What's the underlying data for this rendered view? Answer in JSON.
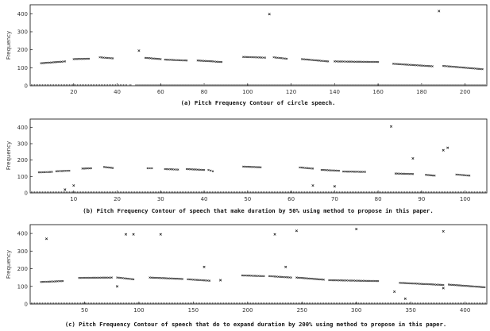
{
  "chart_data": [
    {
      "type": "scatter",
      "ylabel": "Frequency",
      "caption": "(a) Pitch Frequency Contour of circle speech.",
      "xlim": [
        0,
        210
      ],
      "ylim": [
        0,
        450
      ],
      "xticks": [
        20,
        40,
        60,
        80,
        100,
        120,
        140,
        160,
        180,
        200
      ],
      "yticks": [
        0,
        100,
        200,
        300,
        400
      ],
      "segments": [
        {
          "x": [
            5,
            16
          ],
          "y": [
            125,
            135
          ]
        },
        {
          "x": [
            20,
            27
          ],
          "y": [
            148,
            150
          ]
        },
        {
          "x": [
            32,
            38
          ],
          "y": [
            158,
            152
          ]
        },
        {
          "x": [
            53,
            60
          ],
          "y": [
            155,
            148
          ]
        },
        {
          "x": [
            62,
            72
          ],
          "y": [
            145,
            140
          ]
        },
        {
          "x": [
            77,
            88
          ],
          "y": [
            140,
            132
          ]
        },
        {
          "x": [
            98,
            108
          ],
          "y": [
            160,
            156
          ]
        },
        {
          "x": [
            112,
            118
          ],
          "y": [
            158,
            150
          ]
        },
        {
          "x": [
            125,
            137
          ],
          "y": [
            148,
            135
          ]
        },
        {
          "x": [
            140,
            160
          ],
          "y": [
            135,
            132
          ]
        },
        {
          "x": [
            167,
            185
          ],
          "y": [
            122,
            108
          ]
        },
        {
          "x": [
            190,
            208
          ],
          "y": [
            110,
            92
          ]
        }
      ],
      "outliers": [
        {
          "x": 110,
          "y": 398
        },
        {
          "x": 188,
          "y": 415
        },
        {
          "x": 50,
          "y": 195
        }
      ],
      "zero_runs": [
        [
          0,
          45
        ],
        [
          45,
          47
        ],
        [
          48,
          210
        ]
      ]
    },
    {
      "type": "scatter",
      "ylabel": "Frequency",
      "caption": "(b) Pitch Frequency Contour of speech that make duration by 50% using method to propose in this paper.",
      "xlim": [
        0,
        105
      ],
      "ylim": [
        0,
        450
      ],
      "xticks": [
        10,
        20,
        30,
        40,
        50,
        60,
        70,
        80,
        90,
        100
      ],
      "yticks": [
        0,
        100,
        200,
        300,
        400
      ],
      "segments": [
        {
          "x": [
            2,
            5
          ],
          "y": [
            125,
            128
          ]
        },
        {
          "x": [
            6,
            9
          ],
          "y": [
            132,
            135
          ]
        },
        {
          "x": [
            12,
            14
          ],
          "y": [
            148,
            150
          ]
        },
        {
          "x": [
            17,
            19
          ],
          "y": [
            158,
            152
          ]
        },
        {
          "x": [
            27,
            28
          ],
          "y": [
            150,
            150
          ]
        },
        {
          "x": [
            31,
            34
          ],
          "y": [
            145,
            142
          ]
        },
        {
          "x": [
            36,
            40
          ],
          "y": [
            145,
            140
          ]
        },
        {
          "x": [
            41,
            42
          ],
          "y": [
            140,
            132
          ]
        },
        {
          "x": [
            49,
            53
          ],
          "y": [
            160,
            156
          ]
        },
        {
          "x": [
            62,
            65
          ],
          "y": [
            155,
            148
          ]
        },
        {
          "x": [
            67,
            71
          ],
          "y": [
            140,
            135
          ]
        },
        {
          "x": [
            72,
            77
          ],
          "y": [
            130,
            128
          ]
        },
        {
          "x": [
            84,
            88
          ],
          "y": [
            118,
            115
          ]
        },
        {
          "x": [
            91,
            93
          ],
          "y": [
            110,
            105
          ]
        },
        {
          "x": [
            98,
            101
          ],
          "y": [
            112,
            105
          ]
        }
      ],
      "outliers": [
        {
          "x": 10,
          "y": 45
        },
        {
          "x": 8,
          "y": 20
        },
        {
          "x": 65,
          "y": 45
        },
        {
          "x": 70,
          "y": 40
        },
        {
          "x": 83,
          "y": 405
        },
        {
          "x": 88,
          "y": 210
        },
        {
          "x": 95,
          "y": 260
        },
        {
          "x": 96,
          "y": 275
        }
      ],
      "zero_runs": [
        [
          0,
          105
        ]
      ]
    },
    {
      "type": "scatter",
      "ylabel": "Frequency",
      "caption": "(c) Pitch Frequency Contour of speech that do to expand duration by 200% using method to propose in this paper.",
      "xlim": [
        0,
        420
      ],
      "ylim": [
        0,
        450
      ],
      "xticks": [
        50,
        100,
        150,
        200,
        250,
        300,
        350,
        400
      ],
      "yticks": [
        0,
        100,
        200,
        300,
        400
      ],
      "segments": [
        {
          "x": [
            10,
            30
          ],
          "y": [
            125,
            130
          ]
        },
        {
          "x": [
            45,
            75
          ],
          "y": [
            148,
            150
          ]
        },
        {
          "x": [
            80,
            95
          ],
          "y": [
            150,
            140
          ]
        },
        {
          "x": [
            110,
            140
          ],
          "y": [
            150,
            142
          ]
        },
        {
          "x": [
            145,
            165
          ],
          "y": [
            140,
            132
          ]
        },
        {
          "x": [
            195,
            215
          ],
          "y": [
            162,
            158
          ]
        },
        {
          "x": [
            220,
            240
          ],
          "y": [
            158,
            150
          ]
        },
        {
          "x": [
            245,
            270
          ],
          "y": [
            150,
            138
          ]
        },
        {
          "x": [
            275,
            320
          ],
          "y": [
            135,
            130
          ]
        },
        {
          "x": [
            340,
            380
          ],
          "y": [
            120,
            108
          ]
        },
        {
          "x": [
            385,
            418
          ],
          "y": [
            110,
            95
          ]
        }
      ],
      "outliers": [
        {
          "x": 15,
          "y": 370
        },
        {
          "x": 88,
          "y": 395
        },
        {
          "x": 95,
          "y": 395
        },
        {
          "x": 120,
          "y": 395
        },
        {
          "x": 225,
          "y": 395
        },
        {
          "x": 245,
          "y": 415
        },
        {
          "x": 300,
          "y": 425
        },
        {
          "x": 380,
          "y": 412
        },
        {
          "x": 160,
          "y": 210
        },
        {
          "x": 235,
          "y": 210
        },
        {
          "x": 175,
          "y": 135
        },
        {
          "x": 335,
          "y": 70
        },
        {
          "x": 380,
          "y": 90
        },
        {
          "x": 345,
          "y": 30
        },
        {
          "x": 80,
          "y": 100
        }
      ],
      "zero_runs": [
        [
          0,
          420
        ]
      ]
    }
  ]
}
